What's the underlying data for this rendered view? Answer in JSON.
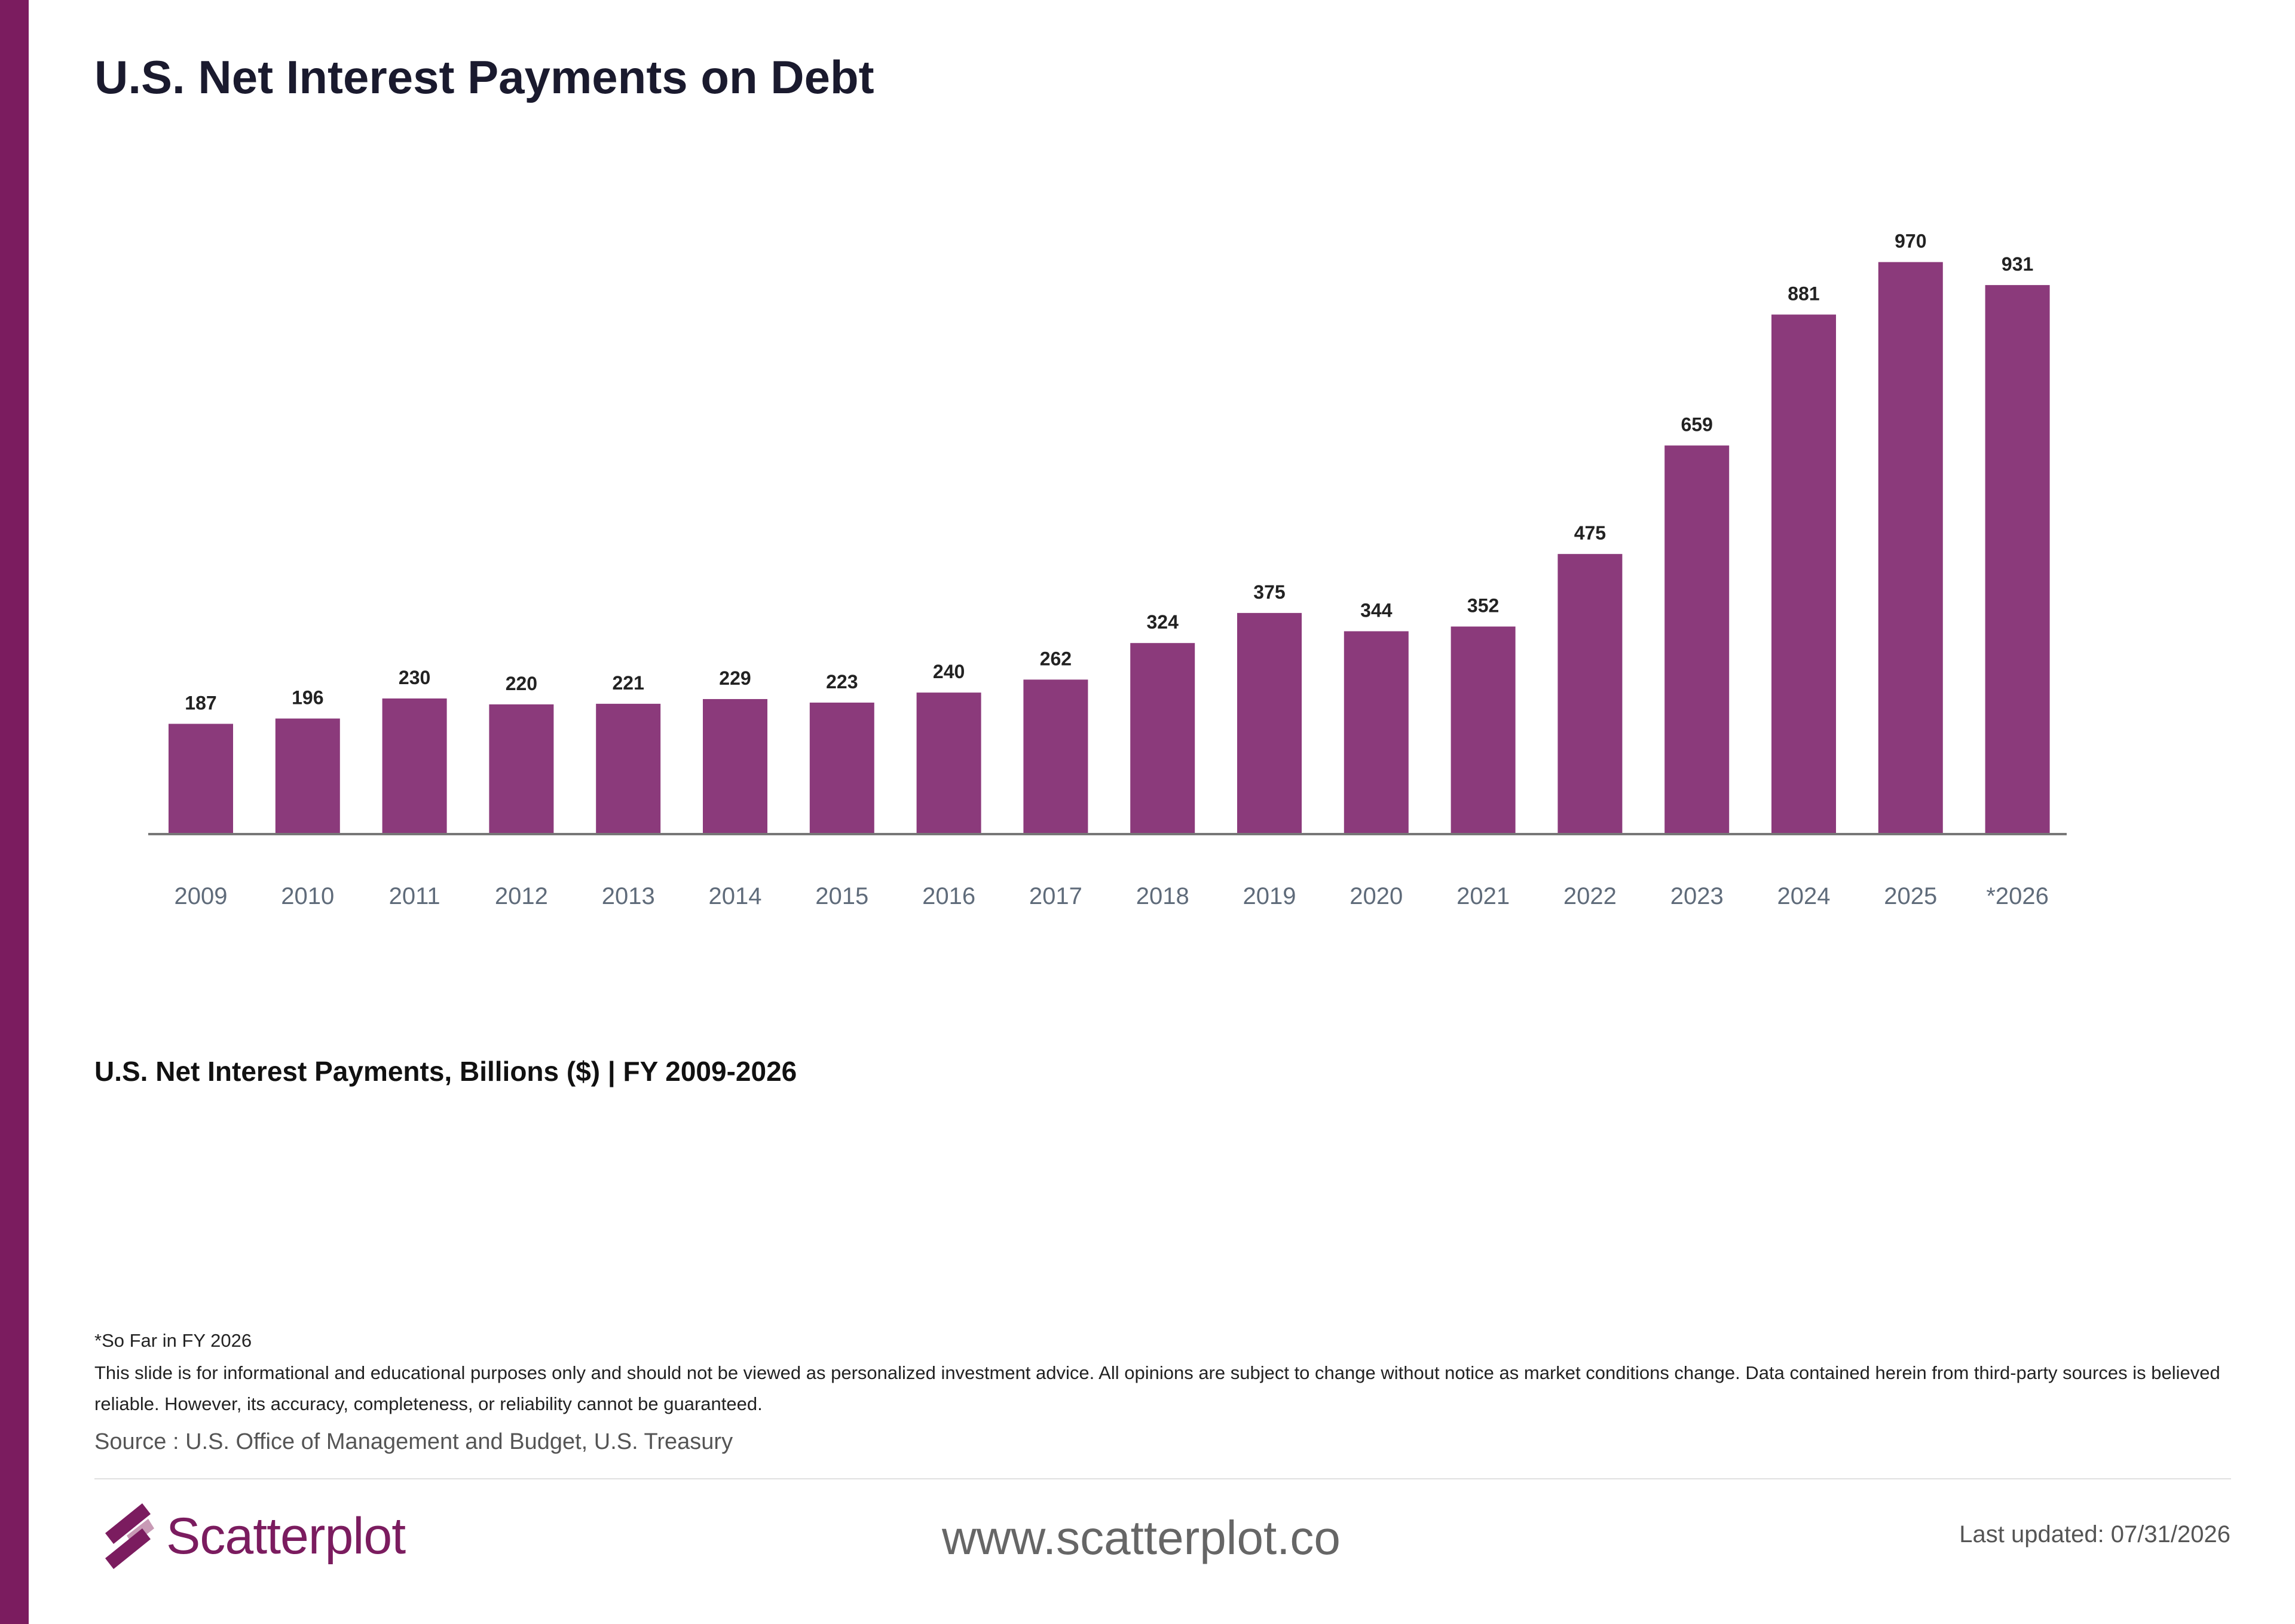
{
  "page": {
    "title": "U.S. Net Interest Payments on Debt",
    "subtitle": "U.S. Net Interest Payments, Billions ($) | FY 2009-2026",
    "footnote": "*So Far in FY 2026",
    "disclaimer": "This slide is for informational and educational purposes only and should not be viewed as personalized investment advice. All opinions are subject to change without notice as market conditions change. Data contained herein from third-party sources is believed reliable. However, its accuracy, completeness, or reliability cannot be guaranteed.",
    "source": "Source : U.S. Office of Management and Budget, U.S. Treasury",
    "website": "www.scatterplot.co",
    "last_updated": "Last updated: 07/31/2026"
  },
  "logo": {
    "name": "Scatterplot",
    "icon": "scatterplot-logo-icon",
    "colors": [
      "#7b1c5f",
      "#c89ab5"
    ]
  },
  "colors": {
    "accent": "#7b1c5f",
    "bar": "#8b3a7b",
    "axis": "#777777",
    "tick_label": "#5f6b7a",
    "value_label": "#222222"
  },
  "chart_data": {
    "type": "bar",
    "categories": [
      "2009",
      "2010",
      "2011",
      "2012",
      "2013",
      "2014",
      "2015",
      "2016",
      "2017",
      "2018",
      "2019",
      "2020",
      "2021",
      "2022",
      "2023",
      "2024",
      "2025",
      "*2026"
    ],
    "values": [
      187,
      196,
      230,
      220,
      221,
      229,
      223,
      240,
      262,
      324,
      375,
      344,
      352,
      475,
      659,
      881,
      970,
      931
    ],
    "data_labels": true,
    "ylim": [
      0,
      1000
    ],
    "grid": false,
    "legend": "none"
  }
}
